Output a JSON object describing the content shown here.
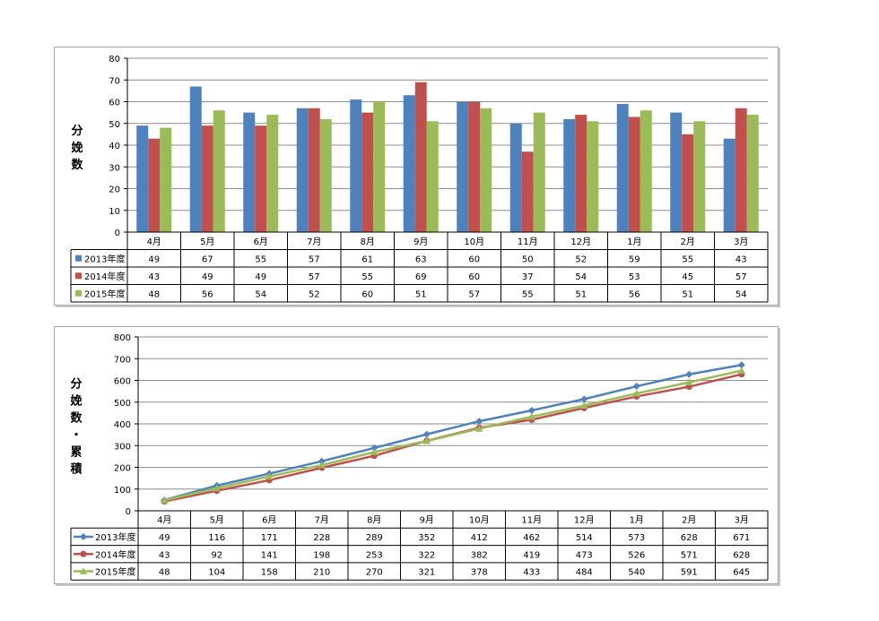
{
  "colors": {
    "s2013": "#4f81bd",
    "s2014": "#c0504d",
    "s2015": "#9bbb59",
    "grid": "#8c8c8c"
  },
  "months": [
    "4月",
    "5月",
    "6月",
    "7月",
    "8月",
    "9月",
    "10月",
    "11月",
    "12月",
    "1月",
    "2月",
    "3月"
  ],
  "chart_data": [
    {
      "type": "bar",
      "ylabel": "分娩数",
      "ylim": [
        0,
        80
      ],
      "yticks": [
        0,
        10,
        20,
        30,
        40,
        50,
        60,
        70,
        80
      ],
      "grid": true,
      "legend": "data-table",
      "categories": [
        "4月",
        "5月",
        "6月",
        "7月",
        "8月",
        "9月",
        "10月",
        "11月",
        "12月",
        "1月",
        "2月",
        "3月"
      ],
      "series": [
        {
          "name": "2013年度",
          "values": [
            49,
            67,
            55,
            57,
            61,
            63,
            60,
            50,
            52,
            59,
            55,
            43
          ]
        },
        {
          "name": "2014年度",
          "values": [
            43,
            49,
            49,
            57,
            55,
            69,
            60,
            37,
            54,
            53,
            45,
            57
          ]
        },
        {
          "name": "2015年度",
          "values": [
            48,
            56,
            54,
            52,
            60,
            51,
            57,
            55,
            51,
            56,
            51,
            54
          ]
        }
      ]
    },
    {
      "type": "line",
      "ylabel": "分娩数・累積",
      "ylim": [
        0,
        800
      ],
      "yticks": [
        0,
        100,
        200,
        300,
        400,
        500,
        600,
        700,
        800
      ],
      "grid": true,
      "legend": "data-table",
      "categories": [
        "4月",
        "5月",
        "6月",
        "7月",
        "8月",
        "9月",
        "10月",
        "11月",
        "12月",
        "1月",
        "2月",
        "3月"
      ],
      "series": [
        {
          "name": "2013年度",
          "values": [
            49,
            116,
            171,
            228,
            289,
            352,
            412,
            462,
            514,
            573,
            628,
            671
          ]
        },
        {
          "name": "2014年度",
          "values": [
            43,
            92,
            141,
            198,
            253,
            322,
            382,
            419,
            473,
            526,
            571,
            628
          ]
        },
        {
          "name": "2015年度",
          "values": [
            48,
            104,
            158,
            210,
            270,
            321,
            378,
            433,
            484,
            540,
            591,
            645
          ]
        }
      ]
    }
  ]
}
